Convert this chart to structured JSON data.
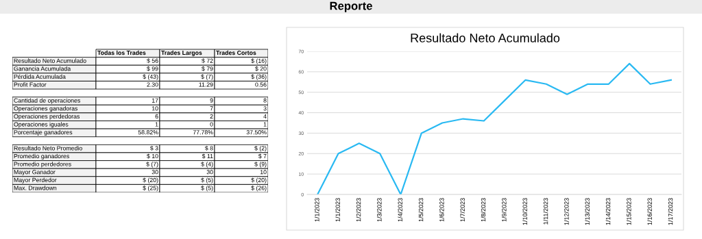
{
  "chart_data": [
    {
      "type": "other",
      "title": "Reporte"
    },
    {
      "type": "other",
      "categories": [
        "Resultado Neto Acumulado",
        "Ganancia Acumulada",
        "Pérdida Acumulada",
        "Profit Factor",
        null,
        "Cantidad de operaciones",
        "Operaciones ganadoras",
        "Operaciones perdedoras",
        "Operaciones iguales",
        "Porcentaje ganadores",
        null,
        "Resultado Neto Promedio",
        "Promedio ganadores",
        "Promedio perdedores",
        "Mayor Ganador",
        "Mayor Perdedor",
        "Max. Drawdown"
      ],
      "series": [
        {
          "name": "Todas los Trades",
          "values": [
            56,
            99,
            -43,
            2.3,
            null,
            17,
            10,
            6,
            1,
            58.82,
            null,
            3,
            10,
            -7,
            30,
            -20,
            -25
          ],
          "value_labels": [
            "$ 56",
            "$ 99",
            "$ (43)",
            "2.30",
            null,
            "17",
            "10",
            "6",
            "1",
            "58.82%",
            null,
            "$ 3",
            "$ 10",
            "$ (7)",
            "30",
            "$ (20)",
            "$ (25)"
          ]
        },
        {
          "name": "Trades Largos",
          "values": [
            72,
            79,
            -7,
            11.29,
            null,
            9,
            7,
            2,
            0,
            77.78,
            null,
            8,
            11,
            -4,
            30,
            -5,
            -5
          ],
          "value_labels": [
            "$ 72",
            "$ 79",
            "$ (7)",
            "11.29",
            null,
            "9",
            "7",
            "2",
            "0",
            "77.78%",
            null,
            "$ 8",
            "$ 11",
            "$ (4)",
            "30",
            "$ (5)",
            "$ (5)"
          ]
        },
        {
          "name": "Trades Cortos",
          "values": [
            -16,
            20,
            -36,
            0.56,
            null,
            8,
            3,
            4,
            1,
            37.5,
            null,
            -2,
            7,
            -9,
            10,
            -20,
            -26
          ],
          "value_labels": [
            "$ (16)",
            "$ 20",
            "$ (36)",
            "0.56",
            null,
            "8",
            "3",
            "4",
            "1",
            "37.50%",
            null,
            "$ (2)",
            "$ 7",
            "$ (9)",
            "10",
            "$ (20)",
            "$ (26)"
          ]
        }
      ]
    },
    {
      "type": "line",
      "title": "Resultado Neto Acumulado",
      "categories": [
        "1/1/2023",
        "1/1/2023",
        "1/2/2023",
        "1/3/2023",
        "1/4/2023",
        "1/5/2023",
        "1/6/2023",
        "1/7/2023",
        "1/8/2023",
        "1/9/2023",
        "1/10/2023",
        "1/11/2023",
        "1/12/2023",
        "1/13/2023",
        "1/14/2023",
        "1/15/2023",
        "1/16/2023",
        "1/17/2023"
      ],
      "series": [
        {
          "color": "#29b9f2",
          "values": [
            0,
            20,
            25,
            20,
            0,
            30,
            35,
            37,
            36,
            46,
            56,
            54,
            49,
            54,
            54,
            64,
            54,
            56
          ]
        }
      ],
      "ylim": [
        0,
        70
      ],
      "yticks": [
        0,
        10,
        20,
        30,
        40,
        50,
        60,
        70
      ],
      "grid": "y",
      "marker": "none",
      "line_style": "solid"
    }
  ]
}
